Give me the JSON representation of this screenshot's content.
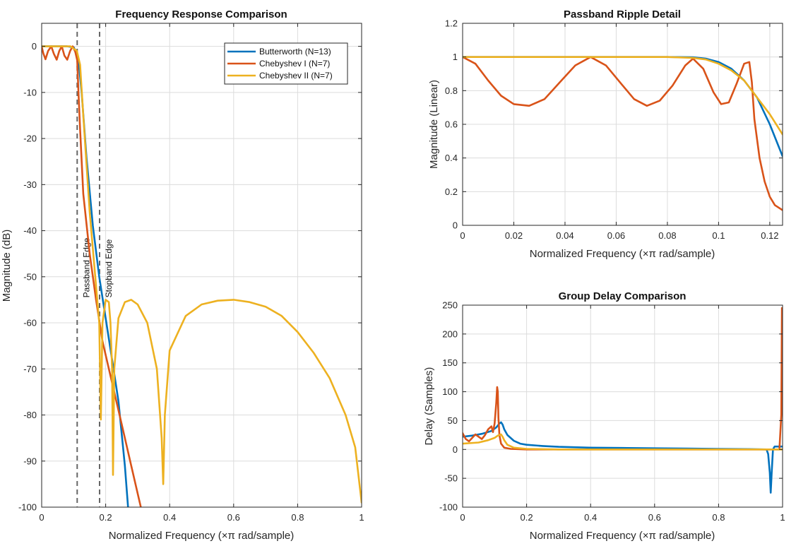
{
  "colors": {
    "butterworth": "#0072BD",
    "chebyshev1": "#D95319",
    "chebyshev2": "#EDB120",
    "marker_line": "#666666"
  },
  "chart_data": [
    {
      "id": "freq",
      "type": "line",
      "title": "Frequency Response Comparison",
      "xlabel": "Normalized Frequency (×π rad/sample)",
      "ylabel": "Magnitude (dB)",
      "xlim": [
        0,
        1
      ],
      "ylim": [
        -100,
        5
      ],
      "xticks": [
        0,
        0.2,
        0.4,
        0.6,
        0.8,
        1
      ],
      "xtick_labels": [
        "0",
        "0.2",
        "0.4",
        "0.6",
        "0.8",
        "1"
      ],
      "yticks": [
        0,
        -10,
        -20,
        -30,
        -40,
        -50,
        -60,
        -70,
        -80,
        -90,
        -100
      ],
      "ytick_labels": [
        "0",
        "-10",
        "-20",
        "-30",
        "-40",
        "-50",
        "-60",
        "-70",
        "-80",
        "-90",
        "-100"
      ],
      "legend": {
        "location": "top-right",
        "entries": [
          "Butterworth (N=13)",
          "Chebyshev I (N=7)",
          "Chebyshev II (N=7)"
        ]
      },
      "vlines": [
        {
          "x": 0.111,
          "label": "Passband Edge"
        },
        {
          "x": 0.181,
          "label": "Stopband Edge"
        }
      ],
      "series": [
        {
          "name": "Butterworth (N=13)",
          "x": [
            0,
            0.08,
            0.1,
            0.11,
            0.115,
            0.125,
            0.14,
            0.16,
            0.18,
            0.2,
            0.22,
            0.24,
            0.26,
            0.27
          ],
          "y": [
            0,
            0,
            -0.2,
            -1.5,
            -3,
            -10,
            -24,
            -39,
            -50,
            -59,
            -68,
            -77,
            -91,
            -100
          ]
        },
        {
          "name": "Chebyshev I (N=7)",
          "x": [
            0,
            0.005,
            0.012,
            0.02,
            0.03,
            0.038,
            0.047,
            0.055,
            0.063,
            0.071,
            0.08,
            0.089,
            0.097,
            0.105,
            0.111,
            0.115,
            0.12,
            0.13,
            0.15,
            0.17,
            0.19,
            0.22,
            0.25,
            0.28,
            0.31
          ],
          "y": [
            0,
            -1.5,
            -2.8,
            -1,
            0,
            -1.6,
            -2.9,
            -1,
            0,
            -2,
            -2.9,
            -1,
            0,
            -1.2,
            -3,
            -10,
            -18,
            -32,
            -45,
            -55,
            -64,
            -73,
            -82,
            -91,
            -100
          ]
        },
        {
          "name": "Chebyshev II (N=7)",
          "x": [
            0,
            0.09,
            0.11,
            0.12,
            0.13,
            0.15,
            0.17,
            0.18,
            0.185,
            0.19,
            0.2,
            0.21,
            0.215,
            0.22,
            0.223,
            0.227,
            0.24,
            0.26,
            0.28,
            0.3,
            0.33,
            0.36,
            0.375,
            0.38,
            0.385,
            0.4,
            0.45,
            0.5,
            0.55,
            0.6,
            0.65,
            0.7,
            0.75,
            0.8,
            0.85,
            0.9,
            0.95,
            0.98,
            1.0
          ],
          "y": [
            0,
            0,
            -1,
            -4,
            -15,
            -36,
            -52,
            -60,
            -81,
            -60,
            -55,
            -55.5,
            -60,
            -70,
            -93,
            -70,
            -59,
            -55.5,
            -55,
            -56,
            -60,
            -70,
            -85,
            -95,
            -80,
            -66,
            -58.5,
            -56,
            -55.2,
            -55,
            -55.5,
            -56.5,
            -58.5,
            -62,
            -66.5,
            -72,
            -80,
            -87,
            -99
          ]
        }
      ]
    },
    {
      "id": "ripple",
      "type": "line",
      "title": "Passband Ripple Detail",
      "xlabel": "Normalized Frequency (×π rad/sample)",
      "ylabel": "Magnitude (Linear)",
      "xlim": [
        0,
        0.125
      ],
      "ylim": [
        0,
        1.2
      ],
      "xticks": [
        0,
        0.02,
        0.04,
        0.06,
        0.08,
        0.1,
        0.12
      ],
      "xtick_labels": [
        "0",
        "0.02",
        "0.04",
        "0.06",
        "0.08",
        "0.1",
        "0.12"
      ],
      "yticks": [
        0,
        0.2,
        0.4,
        0.6,
        0.8,
        1,
        1.2
      ],
      "ytick_labels": [
        "0",
        "0.2",
        "0.4",
        "0.6",
        "0.8",
        "1",
        "1.2"
      ],
      "series": [
        {
          "name": "Butterworth (N=13)",
          "x": [
            0,
            0.02,
            0.04,
            0.06,
            0.08,
            0.09,
            0.095,
            0.1,
            0.105,
            0.11,
            0.115,
            0.12,
            0.125
          ],
          "y": [
            1,
            1,
            1,
            1,
            1,
            0.998,
            0.99,
            0.97,
            0.93,
            0.86,
            0.76,
            0.6,
            0.41
          ]
        },
        {
          "name": "Chebyshev I (N=7)",
          "x": [
            0,
            0.005,
            0.01,
            0.015,
            0.02,
            0.026,
            0.032,
            0.038,
            0.044,
            0.05,
            0.056,
            0.062,
            0.067,
            0.072,
            0.077,
            0.082,
            0.087,
            0.09,
            0.094,
            0.098,
            0.101,
            0.104,
            0.107,
            0.11,
            0.112,
            0.113,
            0.114,
            0.116,
            0.118,
            0.12,
            0.122,
            0.125
          ],
          "y": [
            1,
            0.96,
            0.86,
            0.77,
            0.72,
            0.71,
            0.75,
            0.85,
            0.95,
            1,
            0.95,
            0.84,
            0.75,
            0.71,
            0.74,
            0.83,
            0.95,
            0.99,
            0.93,
            0.79,
            0.72,
            0.73,
            0.84,
            0.96,
            0.97,
            0.85,
            0.63,
            0.4,
            0.26,
            0.17,
            0.12,
            0.09
          ]
        },
        {
          "name": "Chebyshev II (N=7)",
          "x": [
            0,
            0.02,
            0.04,
            0.06,
            0.08,
            0.09,
            0.095,
            0.1,
            0.105,
            0.11,
            0.115,
            0.12,
            0.125
          ],
          "y": [
            1,
            1,
            1,
            1,
            1,
            0.995,
            0.985,
            0.96,
            0.92,
            0.86,
            0.76,
            0.66,
            0.54
          ]
        }
      ]
    },
    {
      "id": "delay",
      "type": "line",
      "title": "Group Delay Comparison",
      "xlabel": "Normalized Frequency (×π rad/sample)",
      "ylabel": "Delay (Samples)",
      "xlim": [
        0,
        1
      ],
      "ylim": [
        -100,
        250
      ],
      "xticks": [
        0,
        0.2,
        0.4,
        0.6,
        0.8,
        1
      ],
      "xtick_labels": [
        "0",
        "0.2",
        "0.4",
        "0.6",
        "0.8",
        "1"
      ],
      "yticks": [
        -100,
        -50,
        0,
        50,
        100,
        150,
        200,
        250
      ],
      "ytick_labels": [
        "-100",
        "-50",
        "0",
        "50",
        "100",
        "150",
        "200",
        "250"
      ],
      "series": [
        {
          "name": "Butterworth (N=13)",
          "x": [
            0,
            0.03,
            0.06,
            0.09,
            0.105,
            0.115,
            0.12,
            0.125,
            0.13,
            0.14,
            0.16,
            0.18,
            0.2,
            0.25,
            0.3,
            0.4,
            0.5,
            0.6,
            0.7,
            0.8,
            0.9,
            0.95,
            0.955,
            0.96,
            0.963,
            0.966,
            0.97,
            0.975,
            0.98,
            1.0
          ],
          "y": [
            22,
            24,
            27,
            32,
            38,
            45,
            47,
            43,
            35,
            25,
            15,
            10,
            8,
            6,
            4.5,
            3,
            2.5,
            2,
            1.5,
            1,
            0.5,
            0,
            -8,
            -40,
            -75,
            -40,
            0,
            5,
            5,
            5
          ]
        },
        {
          "name": "Chebyshev I (N=7)",
          "x": [
            0,
            0.01,
            0.02,
            0.03,
            0.04,
            0.05,
            0.06,
            0.07,
            0.08,
            0.09,
            0.095,
            0.1,
            0.105,
            0.108,
            0.11,
            0.112,
            0.115,
            0.12,
            0.13,
            0.15,
            0.2,
            0.3,
            0.5,
            0.7,
            0.9,
            0.99,
            0.996,
            0.998,
            1.0
          ],
          "y": [
            28,
            18,
            14,
            20,
            26,
            22,
            18,
            25,
            35,
            40,
            30,
            45,
            80,
            108,
            100,
            55,
            25,
            10,
            3,
            1,
            0,
            0,
            0,
            0,
            0,
            0,
            60,
            245,
            120
          ]
        },
        {
          "name": "Chebyshev II (N=7)",
          "x": [
            0,
            0.05,
            0.08,
            0.1,
            0.11,
            0.12,
            0.125,
            0.13,
            0.14,
            0.16,
            0.2,
            0.3,
            0.5,
            0.7,
            0.9,
            1.0
          ],
          "y": [
            10,
            12,
            16,
            20,
            24,
            26,
            22,
            16,
            8,
            3,
            1,
            0,
            0,
            0,
            0,
            0
          ]
        }
      ]
    }
  ]
}
